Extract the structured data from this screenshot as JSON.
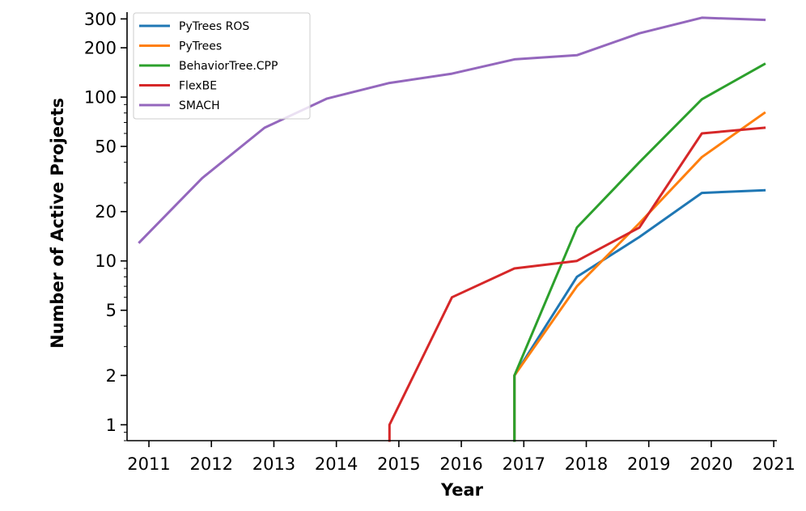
{
  "chart_data": {
    "type": "line",
    "title": "",
    "xlabel": "Year",
    "ylabel": "Number of Active Projects",
    "yscale": "log",
    "ylim": [
      0.8,
      330
    ],
    "xlim": [
      2010.65,
      2021.05
    ],
    "xticks": [
      2011,
      2012,
      2013,
      2014,
      2015,
      2016,
      2017,
      2018,
      2019,
      2020,
      2021
    ],
    "xtick_labels": [
      "2011",
      "2012",
      "2013",
      "2014",
      "2015",
      "2016",
      "2017",
      "2018",
      "2019",
      "2020",
      "2021"
    ],
    "yticks": [
      1,
      2,
      5,
      10,
      20,
      50,
      100,
      200,
      300
    ],
    "ytick_labels": [
      "1",
      "2",
      "5",
      "10",
      "20",
      "50",
      "100",
      "200",
      "300"
    ],
    "legend_position": "top-left",
    "series": [
      {
        "name": "PyTrees ROS",
        "color": "#1f77b4",
        "points": [
          [
            2016.85,
            0.8
          ],
          [
            2016.85,
            2
          ],
          [
            2017.85,
            8
          ],
          [
            2018.85,
            14
          ],
          [
            2019.85,
            26
          ],
          [
            2020.85,
            27
          ]
        ]
      },
      {
        "name": "PyTrees",
        "color": "#ff7f0e",
        "points": [
          [
            2016.85,
            0.8
          ],
          [
            2016.85,
            2
          ],
          [
            2017.85,
            7
          ],
          [
            2018.85,
            17
          ],
          [
            2019.85,
            43
          ],
          [
            2020.85,
            80
          ]
        ]
      },
      {
        "name": "BehaviorTree.CPP",
        "color": "#2ca02c",
        "points": [
          [
            2016.85,
            0.8
          ],
          [
            2016.85,
            2
          ],
          [
            2017.85,
            16
          ],
          [
            2018.85,
            40
          ],
          [
            2019.85,
            97
          ],
          [
            2020.85,
            159
          ]
        ]
      },
      {
        "name": "FlexBE",
        "color": "#d62728",
        "points": [
          [
            2014.85,
            0.8
          ],
          [
            2014.85,
            1
          ],
          [
            2015.85,
            6
          ],
          [
            2016.85,
            9
          ],
          [
            2017.85,
            10
          ],
          [
            2018.85,
            16
          ],
          [
            2019.85,
            60
          ],
          [
            2020.85,
            65
          ]
        ]
      },
      {
        "name": "SMACH",
        "color": "#9467bd",
        "points": [
          [
            2010.85,
            13
          ],
          [
            2011.85,
            32
          ],
          [
            2012.85,
            65
          ],
          [
            2013.85,
            98
          ],
          [
            2014.85,
            122
          ],
          [
            2015.85,
            139
          ],
          [
            2016.85,
            170
          ],
          [
            2017.85,
            180
          ],
          [
            2018.85,
            245
          ],
          [
            2019.85,
            305
          ],
          [
            2020.85,
            296
          ]
        ]
      }
    ]
  }
}
